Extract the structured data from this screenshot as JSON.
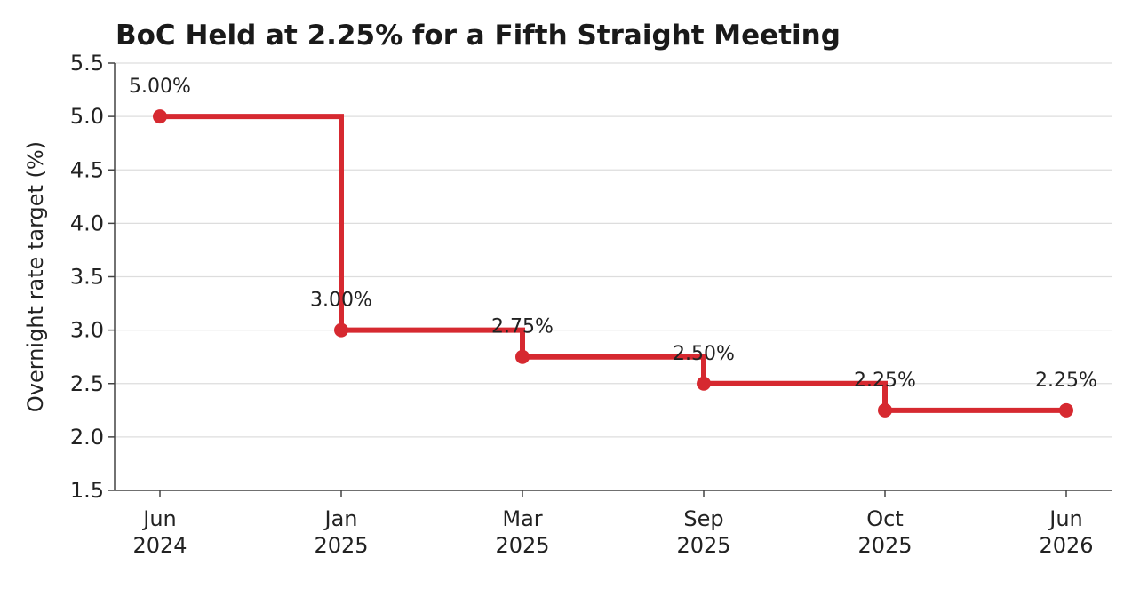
{
  "chart_data": {
    "type": "line",
    "step": true,
    "title": "BoC Held at 2.25% for a Fifth Straight Meeting",
    "ylabel": "Overnight rate target (%)",
    "xlabel": "",
    "categories": [
      [
        "Jun",
        "2024"
      ],
      [
        "Jan",
        "2025"
      ],
      [
        "Mar",
        "2025"
      ],
      [
        "Sep",
        "2025"
      ],
      [
        "Oct",
        "2025"
      ],
      [
        "Jun",
        "2026"
      ]
    ],
    "values": [
      5.0,
      3.0,
      2.75,
      2.5,
      2.25,
      2.25
    ],
    "data_labels": [
      "5.00%",
      "3.00%",
      "2.75%",
      "2.50%",
      "2.25%",
      "2.25%"
    ],
    "ylim": [
      1.5,
      5.5
    ],
    "yticks": [
      "1.5",
      "2.0",
      "2.5",
      "3.0",
      "3.5",
      "4.0",
      "4.5",
      "5.0",
      "5.5"
    ],
    "grid": true,
    "legend": "none",
    "line_color": "#d62930",
    "grid_color": "#dddddd",
    "axis_color": "#444444"
  }
}
